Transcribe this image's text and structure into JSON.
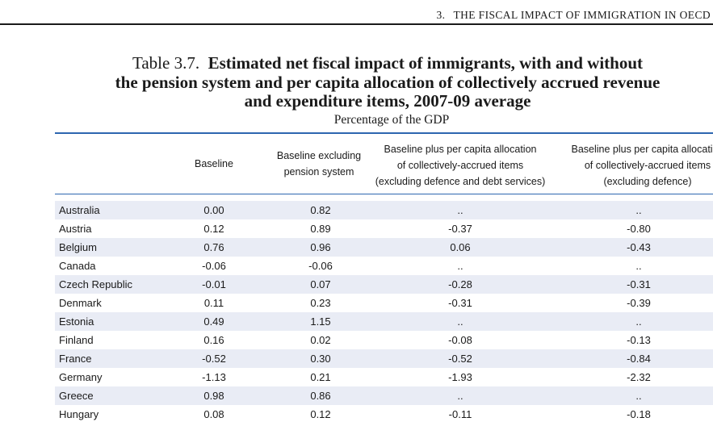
{
  "running_head": {
    "chapter_number": "3.",
    "chapter_title": "THE FISCAL IMPACT OF IMMIGRATION IN OECD"
  },
  "table": {
    "number": "Table 3.7.",
    "title_lines": [
      "Estimated net fiscal impact of immigrants, with and without",
      "the pension system and per capita allocation of collectively accrued revenue",
      "and expenditure items, 2007-09 average"
    ],
    "subtitle": "Percentage of the GDP",
    "headers": {
      "baseline": [
        "Baseline"
      ],
      "excl_pension": [
        "Baseline excluding",
        "pension system"
      ],
      "per_capita_excl_defence_debt": [
        "Baseline plus per capita allocation",
        "of collectively-accrued items",
        "(excluding defence and debt services)"
      ],
      "per_capita_excl_defence": [
        "Baseline plus per capita allocation",
        "of collectively-accrued items",
        "(excluding defence)"
      ]
    },
    "rows": [
      {
        "country": "Australia",
        "baseline": "0.00",
        "excl_pension": "0.82",
        "pc_excl_defence_debt": "..",
        "pc_excl_defence": ".."
      },
      {
        "country": "Austria",
        "baseline": "0.12",
        "excl_pension": "0.89",
        "pc_excl_defence_debt": "-0.37",
        "pc_excl_defence": "-0.80"
      },
      {
        "country": "Belgium",
        "baseline": "0.76",
        "excl_pension": "0.96",
        "pc_excl_defence_debt": "0.06",
        "pc_excl_defence": "-0.43"
      },
      {
        "country": "Canada",
        "baseline": "-0.06",
        "excl_pension": "-0.06",
        "pc_excl_defence_debt": "..",
        "pc_excl_defence": ".."
      },
      {
        "country": "Czech Republic",
        "baseline": "-0.01",
        "excl_pension": "0.07",
        "pc_excl_defence_debt": "-0.28",
        "pc_excl_defence": "-0.31"
      },
      {
        "country": "Denmark",
        "baseline": "0.11",
        "excl_pension": "0.23",
        "pc_excl_defence_debt": "-0.31",
        "pc_excl_defence": "-0.39"
      },
      {
        "country": "Estonia",
        "baseline": "0.49",
        "excl_pension": "1.15",
        "pc_excl_defence_debt": "..",
        "pc_excl_defence": ".."
      },
      {
        "country": "Finland",
        "baseline": "0.16",
        "excl_pension": "0.02",
        "pc_excl_defence_debt": "-0.08",
        "pc_excl_defence": "-0.13"
      },
      {
        "country": "France",
        "baseline": "-0.52",
        "excl_pension": "0.30",
        "pc_excl_defence_debt": "-0.52",
        "pc_excl_defence": "-0.84"
      },
      {
        "country": "Germany",
        "baseline": "-1.13",
        "excl_pension": "0.21",
        "pc_excl_defence_debt": "-1.93",
        "pc_excl_defence": "-2.32"
      },
      {
        "country": "Greece",
        "baseline": "0.98",
        "excl_pension": "0.86",
        "pc_excl_defence_debt": "..",
        "pc_excl_defence": ".."
      },
      {
        "country": "Hungary",
        "baseline": "0.08",
        "excl_pension": "0.12",
        "pc_excl_defence_debt": "-0.11",
        "pc_excl_defence": "-0.18"
      }
    ]
  }
}
